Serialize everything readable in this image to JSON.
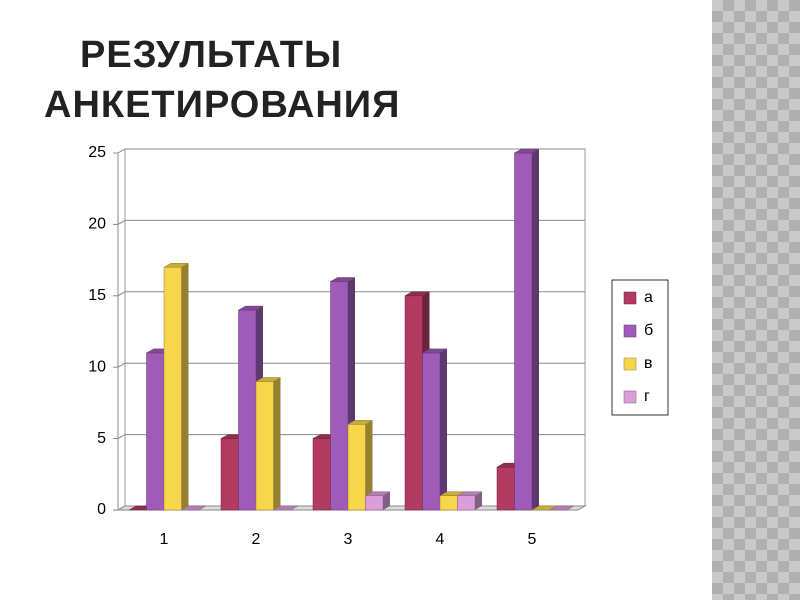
{
  "chart_data": {
    "type": "bar3d",
    "title": "РЕЗУЛЬТАТЫ АНКЕТИРОВАНИЯ",
    "categories": [
      "1",
      "2",
      "3",
      "4",
      "5"
    ],
    "series": [
      {
        "name": "а",
        "color": "#b33b62",
        "values": [
          0,
          5,
          5,
          15,
          3
        ]
      },
      {
        "name": "б",
        "color": "#a05bb9",
        "values": [
          11,
          14,
          16,
          11,
          25
        ]
      },
      {
        "name": "в",
        "color": "#f7d64c",
        "values": [
          17,
          9,
          6,
          1,
          0
        ]
      },
      {
        "name": "г",
        "color": "#dc9edb",
        "values": [
          0,
          0,
          1,
          1,
          0
        ]
      }
    ],
    "ylim": [
      0,
      25
    ],
    "yticks": [
      0,
      5,
      10,
      15,
      20,
      25
    ],
    "grid": true,
    "legend": "right"
  }
}
